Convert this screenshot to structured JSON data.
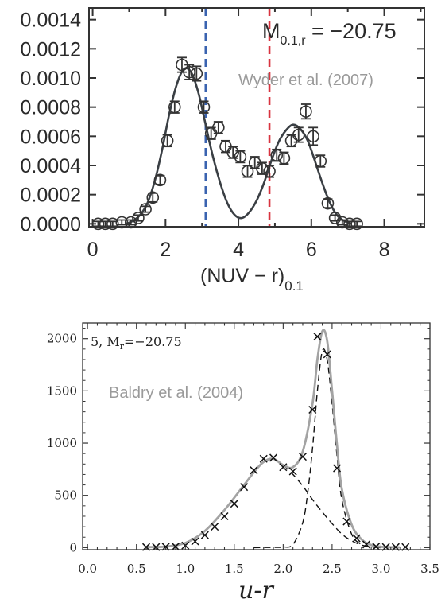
{
  "chart_data": [
    {
      "type": "line",
      "xlabel_main": "(NUV − r)",
      "xlabel_sub": "0.1",
      "ylabel": "",
      "xlim": [
        -0.1,
        9.1
      ],
      "ylim": [
        -2e-05,
        0.00148
      ],
      "x_ticks": [
        0,
        2,
        4,
        6,
        8
      ],
      "y_ticks": [
        0.0,
        0.0002,
        0.0004,
        0.0006,
        0.0008,
        0.001,
        0.0012,
        0.0014
      ],
      "y_tick_labels": [
        "0.0000",
        "0.0002",
        "0.0004",
        "0.0006",
        "0.0008",
        "0.0010",
        "0.0012",
        "0.0014"
      ],
      "annotation": {
        "main": "M",
        "sub": "0.1,r",
        "rest": " = −20.75"
      },
      "reference": "Wyder et al. (2007)",
      "vlines": [
        {
          "x": 3.1,
          "color": "#3a63b0"
        },
        {
          "x": 4.85,
          "color": "#d8343f"
        }
      ],
      "points": [
        {
          "x": 0.15,
          "y": 0.0,
          "err": 1e-05
        },
        {
          "x": 0.35,
          "y": 0.0,
          "err": 1e-05
        },
        {
          "x": 0.55,
          "y": 0.0,
          "err": 1e-05
        },
        {
          "x": 0.8,
          "y": 1e-05,
          "err": 1e-05
        },
        {
          "x": 1.05,
          "y": 1e-05,
          "err": 1e-05
        },
        {
          "x": 1.25,
          "y": 4e-05,
          "err": 2e-05
        },
        {
          "x": 1.45,
          "y": 0.0001,
          "err": 2e-05
        },
        {
          "x": 1.65,
          "y": 0.00018,
          "err": 3e-05
        },
        {
          "x": 1.85,
          "y": 0.0003,
          "err": 3e-05
        },
        {
          "x": 2.05,
          "y": 0.00057,
          "err": 4e-05
        },
        {
          "x": 2.25,
          "y": 0.0008,
          "err": 4e-05
        },
        {
          "x": 2.45,
          "y": 0.00109,
          "err": 5e-05
        },
        {
          "x": 2.65,
          "y": 0.00104,
          "err": 5e-05
        },
        {
          "x": 2.85,
          "y": 0.00103,
          "err": 5e-05
        },
        {
          "x": 3.05,
          "y": 0.0008,
          "err": 4e-05
        },
        {
          "x": 3.25,
          "y": 0.00062,
          "err": 4e-05
        },
        {
          "x": 3.45,
          "y": 0.00066,
          "err": 4e-05
        },
        {
          "x": 3.65,
          "y": 0.00053,
          "err": 4e-05
        },
        {
          "x": 3.85,
          "y": 0.00049,
          "err": 4e-05
        },
        {
          "x": 4.05,
          "y": 0.00046,
          "err": 4e-05
        },
        {
          "x": 4.25,
          "y": 0.00036,
          "err": 4e-05
        },
        {
          "x": 4.45,
          "y": 0.00042,
          "err": 4e-05
        },
        {
          "x": 4.65,
          "y": 0.00038,
          "err": 4e-05
        },
        {
          "x": 4.85,
          "y": 0.00036,
          "err": 4e-05
        },
        {
          "x": 5.05,
          "y": 0.00047,
          "err": 4e-05
        },
        {
          "x": 5.25,
          "y": 0.00045,
          "err": 4e-05
        },
        {
          "x": 5.45,
          "y": 0.00057,
          "err": 4e-05
        },
        {
          "x": 5.65,
          "y": 0.00061,
          "err": 5e-05
        },
        {
          "x": 5.85,
          "y": 0.00077,
          "err": 5e-05
        },
        {
          "x": 6.05,
          "y": 0.0006,
          "err": 6e-05
        },
        {
          "x": 6.25,
          "y": 0.00043,
          "err": 4e-05
        },
        {
          "x": 6.45,
          "y": 0.00014,
          "err": 3e-05
        },
        {
          "x": 6.65,
          "y": 4e-05,
          "err": 2e-05
        },
        {
          "x": 6.85,
          "y": 1e-05,
          "err": 1e-05
        },
        {
          "x": 7.05,
          "y": 0.0,
          "err": 1e-05
        },
        {
          "x": 7.25,
          "y": 0.0,
          "err": 1e-05
        }
      ],
      "curve": [
        [
          0.9,
          0.0
        ],
        [
          1.1,
          2e-05
        ],
        [
          1.3,
          6e-05
        ],
        [
          1.5,
          0.00014
        ],
        [
          1.7,
          0.00029
        ],
        [
          1.9,
          0.0005
        ],
        [
          2.1,
          0.00075
        ],
        [
          2.3,
          0.00095
        ],
        [
          2.5,
          0.00106
        ],
        [
          2.7,
          0.00104
        ],
        [
          2.9,
          0.0009
        ],
        [
          3.1,
          0.00068
        ],
        [
          3.3,
          0.00046
        ],
        [
          3.5,
          0.00028
        ],
        [
          3.7,
          0.00014
        ],
        [
          3.9,
          6e-05
        ],
        [
          4.1,
          4e-05
        ],
        [
          4.3,
          8e-05
        ],
        [
          4.5,
          0.00016
        ],
        [
          4.7,
          0.00028
        ],
        [
          4.9,
          0.00043
        ],
        [
          5.1,
          0.00056
        ],
        [
          5.3,
          0.00064
        ],
        [
          5.5,
          0.00068
        ],
        [
          5.7,
          0.00065
        ],
        [
          5.9,
          0.00057
        ],
        [
          6.1,
          0.00043
        ],
        [
          6.3,
          0.00028
        ],
        [
          6.5,
          0.00015
        ],
        [
          6.7,
          6e-05
        ],
        [
          6.9,
          2e-05
        ],
        [
          7.1,
          0.0
        ]
      ]
    },
    {
      "type": "line",
      "xlabel": "u-r",
      "ylabel": "",
      "xlim": [
        -0.05,
        3.5
      ],
      "ylim": [
        -20,
        2150
      ],
      "x_ticks": [
        0.0,
        0.5,
        1.0,
        1.5,
        2.0,
        2.5,
        3.0,
        3.5
      ],
      "x_tick_labels": [
        "0.0",
        "0.5",
        "1.0",
        "1.5",
        "2.0",
        "2.5",
        "3.0",
        "3.5"
      ],
      "y_ticks": [
        0,
        500,
        1000,
        1500,
        2000
      ],
      "y_tick_labels": [
        "0",
        "500",
        "1000",
        "1500",
        "2000"
      ],
      "annotation": {
        "main": "5, M",
        "sub": "r",
        "rest": "=−20.75"
      },
      "reference": "Baldry et al. (2004)",
      "crosses": [
        [
          0.6,
          5
        ],
        [
          0.7,
          5
        ],
        [
          0.8,
          8
        ],
        [
          0.9,
          10
        ],
        [
          1.0,
          20
        ],
        [
          1.1,
          60
        ],
        [
          1.2,
          120
        ],
        [
          1.3,
          200
        ],
        [
          1.4,
          300
        ],
        [
          1.5,
          420
        ],
        [
          1.6,
          580
        ],
        [
          1.7,
          740
        ],
        [
          1.8,
          850
        ],
        [
          1.9,
          860
        ],
        [
          2.0,
          770
        ],
        [
          2.1,
          730
        ],
        [
          2.2,
          870
        ],
        [
          2.3,
          1320
        ],
        [
          2.35,
          2020
        ],
        [
          2.45,
          1850
        ],
        [
          2.55,
          760
        ],
        [
          2.65,
          250
        ],
        [
          2.75,
          90
        ],
        [
          2.85,
          30
        ],
        [
          2.95,
          10
        ],
        [
          3.05,
          5
        ],
        [
          3.15,
          5
        ],
        [
          3.25,
          5
        ]
      ],
      "total_curve": [
        [
          0.6,
          5
        ],
        [
          0.8,
          10
        ],
        [
          1.0,
          45
        ],
        [
          1.2,
          160
        ],
        [
          1.4,
          360
        ],
        [
          1.6,
          600
        ],
        [
          1.7,
          720
        ],
        [
          1.8,
          820
        ],
        [
          1.9,
          850
        ],
        [
          2.0,
          790
        ],
        [
          2.1,
          770
        ],
        [
          2.2,
          920
        ],
        [
          2.3,
          1380
        ],
        [
          2.35,
          1800
        ],
        [
          2.4,
          2070
        ],
        [
          2.45,
          1980
        ],
        [
          2.5,
          1500
        ],
        [
          2.55,
          980
        ],
        [
          2.6,
          560
        ],
        [
          2.7,
          220
        ],
        [
          2.8,
          80
        ],
        [
          2.9,
          25
        ],
        [
          3.0,
          8
        ],
        [
          3.2,
          2
        ]
      ],
      "blue_curve": [
        [
          0.6,
          5
        ],
        [
          0.8,
          10
        ],
        [
          1.0,
          45
        ],
        [
          1.2,
          160
        ],
        [
          1.4,
          360
        ],
        [
          1.6,
          600
        ],
        [
          1.7,
          720
        ],
        [
          1.8,
          820
        ],
        [
          1.9,
          850
        ],
        [
          2.0,
          790
        ],
        [
          2.1,
          700
        ],
        [
          2.2,
          590
        ],
        [
          2.3,
          460
        ],
        [
          2.4,
          340
        ],
        [
          2.5,
          230
        ],
        [
          2.6,
          130
        ],
        [
          2.7,
          65
        ],
        [
          2.8,
          25
        ],
        [
          2.9,
          8
        ],
        [
          3.0,
          2
        ]
      ],
      "red_curve": [
        [
          1.7,
          0
        ],
        [
          1.9,
          2
        ],
        [
          2.0,
          5
        ],
        [
          2.1,
          30
        ],
        [
          2.2,
          240
        ],
        [
          2.25,
          520
        ],
        [
          2.3,
          950
        ],
        [
          2.35,
          1500
        ],
        [
          2.4,
          1880
        ],
        [
          2.45,
          1800
        ],
        [
          2.5,
          1380
        ],
        [
          2.55,
          880
        ],
        [
          2.6,
          460
        ],
        [
          2.7,
          130
        ],
        [
          2.8,
          30
        ],
        [
          2.9,
          5
        ],
        [
          3.0,
          0
        ]
      ]
    }
  ]
}
